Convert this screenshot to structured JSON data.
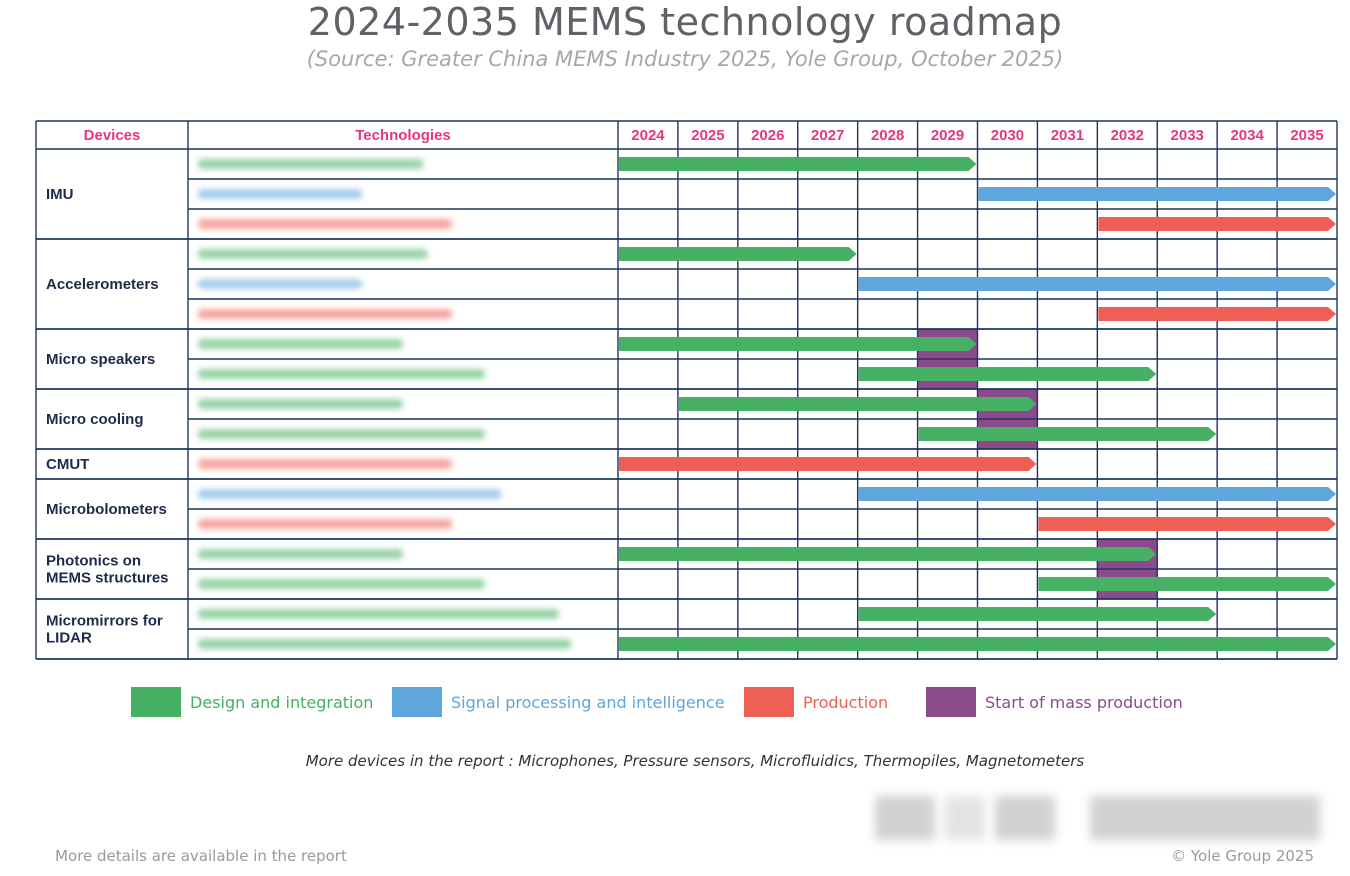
{
  "title": "2024-2035 MEMS technology roadmap",
  "subtitle": "(Source: Greater China MEMS Industry 2025, Yole Group, October 2025)",
  "colors": {
    "design": "#46b064",
    "signal": "#5ea6dc",
    "production": "#ee5f55",
    "mass": "#8a4a8c",
    "header_text": "#e8357f",
    "grid": "#1f3560",
    "device_text": "#1f2a4a"
  },
  "legend": [
    {
      "key": "design",
      "label": "Design and integration",
      "color": "#46b064"
    },
    {
      "key": "signal",
      "label": "Signal processing and intelligence",
      "color": "#5ea6dc"
    },
    {
      "key": "production",
      "label": "Production",
      "color": "#ee5f55"
    },
    {
      "key": "mass",
      "label": "Start of mass production",
      "color": "#8a4a8c"
    }
  ],
  "note": "More devices in the report : Microphones, Pressure sensors, Microfluidics, Thermopiles, Magnetometers",
  "footer_left": "More details are available in the report",
  "footer_right": "© Yole Group 2025",
  "chart_data": {
    "type": "table",
    "columns": {
      "devices": "Devices",
      "technologies": "Technologies"
    },
    "years": [
      "2024",
      "2025",
      "2026",
      "2027",
      "2028",
      "2029",
      "2030",
      "2031",
      "2032",
      "2033",
      "2034",
      "2035"
    ],
    "groups": [
      {
        "device": [
          "IMU"
        ],
        "rows": 3
      },
      {
        "device": [
          "Accelerometers"
        ],
        "rows": 3
      },
      {
        "device": [
          "Micro speakers"
        ],
        "rows": 2
      },
      {
        "device": [
          "Micro cooling"
        ],
        "rows": 2
      },
      {
        "device": [
          "CMUT"
        ],
        "rows": 1
      },
      {
        "device": [
          "Microbolometers"
        ],
        "rows": 2
      },
      {
        "device": [
          "Photonics on",
          "MEMS structures"
        ],
        "rows": 2
      },
      {
        "device": [
          "Micromirrors for",
          "LIDAR"
        ],
        "rows": 2
      }
    ],
    "bars": [
      {
        "row": 0,
        "category": "design",
        "start": 2024,
        "end": 2029.95
      },
      {
        "row": 1,
        "category": "signal",
        "start": 2030,
        "end": 2035.95
      },
      {
        "row": 2,
        "category": "production",
        "start": 2032,
        "end": 2035.95
      },
      {
        "row": 3,
        "category": "design",
        "start": 2024,
        "end": 2027.95
      },
      {
        "row": 4,
        "category": "signal",
        "start": 2028,
        "end": 2035.95
      },
      {
        "row": 5,
        "category": "production",
        "start": 2032,
        "end": 2035.95
      },
      {
        "row": 6,
        "category": "design",
        "start": 2024,
        "end": 2029.95
      },
      {
        "row": 7,
        "category": "design",
        "start": 2028,
        "end": 2032.95
      },
      {
        "row": 8,
        "category": "design",
        "start": 2025,
        "end": 2030.95
      },
      {
        "row": 9,
        "category": "design",
        "start": 2029,
        "end": 2033.95
      },
      {
        "row": 10,
        "category": "production",
        "start": 2024,
        "end": 2030.95
      },
      {
        "row": 11,
        "category": "signal",
        "start": 2028,
        "end": 2035.95
      },
      {
        "row": 12,
        "category": "production",
        "start": 2031,
        "end": 2035.95
      },
      {
        "row": 13,
        "category": "design",
        "start": 2024,
        "end": 2032.95
      },
      {
        "row": 14,
        "category": "design",
        "start": 2031,
        "end": 2035.95
      },
      {
        "row": 15,
        "category": "design",
        "start": 2028,
        "end": 2033.95
      },
      {
        "row": 16,
        "category": "design",
        "start": 2024,
        "end": 2035.95
      }
    ],
    "mass_production": [
      {
        "rows": [
          6,
          7
        ],
        "year": 2029
      },
      {
        "rows": [
          8,
          9
        ],
        "year": 2030
      },
      {
        "rows": [
          13,
          14
        ],
        "year": 2032
      }
    ],
    "technology_rows": [
      {
        "row": 0,
        "color": "design",
        "len": 0.55
      },
      {
        "row": 1,
        "color": "signal",
        "len": 0.4
      },
      {
        "row": 2,
        "color": "production",
        "len": 0.62
      },
      {
        "row": 3,
        "color": "design",
        "len": 0.56
      },
      {
        "row": 4,
        "color": "signal",
        "len": 0.4
      },
      {
        "row": 5,
        "color": "production",
        "len": 0.62
      },
      {
        "row": 6,
        "color": "design",
        "len": 0.5
      },
      {
        "row": 7,
        "color": "design",
        "len": 0.7
      },
      {
        "row": 8,
        "color": "design",
        "len": 0.5
      },
      {
        "row": 9,
        "color": "design",
        "len": 0.7
      },
      {
        "row": 10,
        "color": "production",
        "len": 0.62
      },
      {
        "row": 11,
        "color": "signal",
        "len": 0.74
      },
      {
        "row": 12,
        "color": "production",
        "len": 0.62
      },
      {
        "row": 13,
        "color": "design",
        "len": 0.5
      },
      {
        "row": 14,
        "color": "design",
        "len": 0.7
      },
      {
        "row": 15,
        "color": "design",
        "len": 0.88
      },
      {
        "row": 16,
        "color": "design",
        "len": 0.91
      }
    ]
  }
}
